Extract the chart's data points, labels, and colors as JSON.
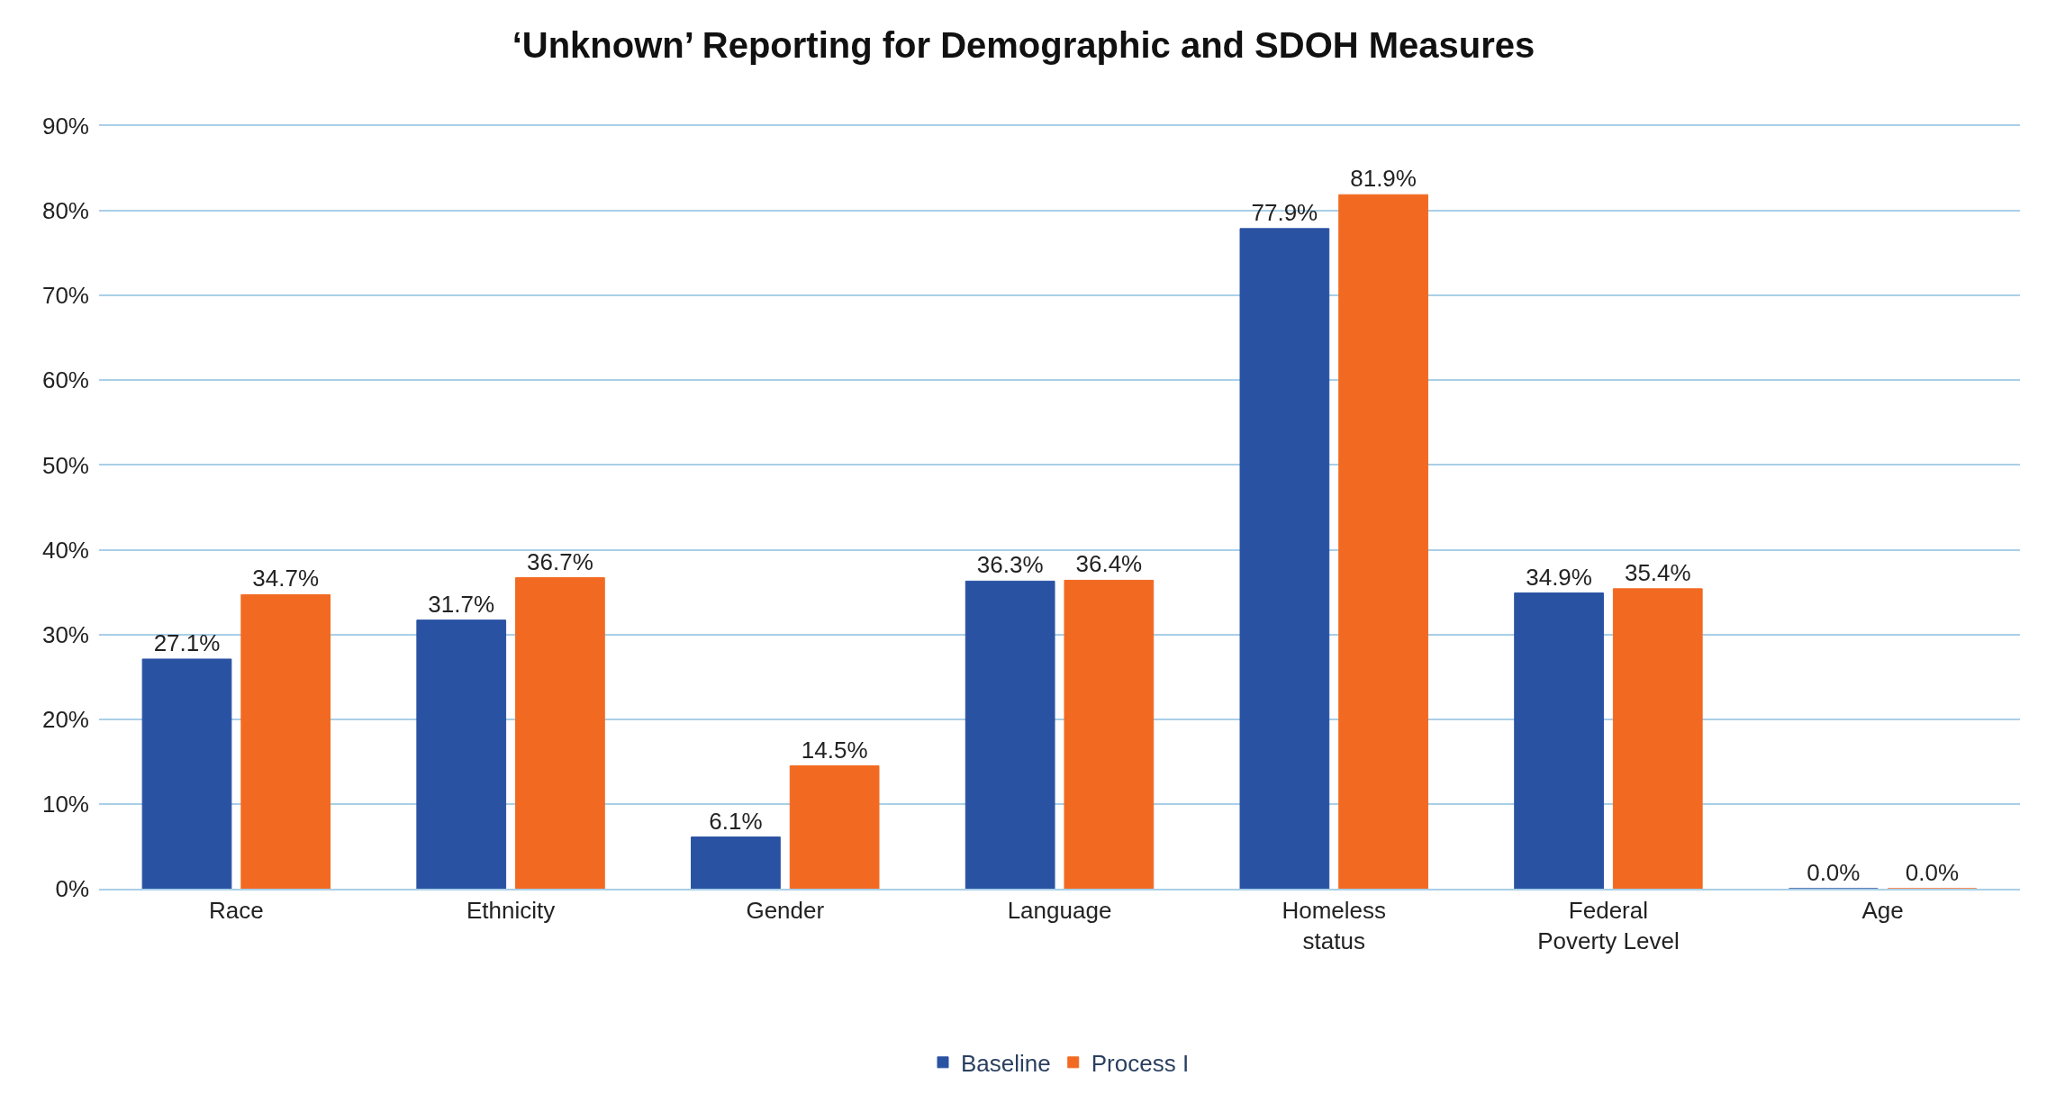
{
  "chart_data": {
    "type": "bar",
    "title": "‘Unknown’ Reporting for Demographic and SDOH Measures",
    "categories": [
      "Race",
      "Ethnicity",
      "Gender",
      "Language",
      "Homeless status",
      "Federal Poverty Level",
      "Age"
    ],
    "series": [
      {
        "name": "Baseline",
        "color": "#2a52a3",
        "values": [
          27.1,
          31.7,
          6.1,
          36.3,
          77.9,
          34.9,
          0.0
        ],
        "value_labels": [
          "27.1%",
          "31.7%",
          "6.1%",
          "36.3%",
          "77.9%",
          "34.9%",
          "0.0%"
        ]
      },
      {
        "name": "Process I",
        "color": "#f26a22",
        "values": [
          34.7,
          36.7,
          14.5,
          36.4,
          81.9,
          35.4,
          0.0
        ],
        "value_labels": [
          "34.7%",
          "36.7%",
          "14.5%",
          "36.4%",
          "81.9%",
          "35.4%",
          "0.0%"
        ]
      }
    ],
    "ylim": [
      0,
      90
    ],
    "yticks": [
      {
        "value": 0,
        "label": "0%"
      },
      {
        "value": 10,
        "label": "10%"
      },
      {
        "value": 20,
        "label": "20%"
      },
      {
        "value": 30,
        "label": "30%"
      },
      {
        "value": 40,
        "label": "40%"
      },
      {
        "value": 50,
        "label": "50%"
      },
      {
        "value": 60,
        "label": "60%"
      },
      {
        "value": 70,
        "label": "70%"
      },
      {
        "value": 80,
        "label": "80%"
      },
      {
        "value": 90,
        "label": "90%"
      }
    ],
    "grid": "y",
    "legend": "bottom"
  }
}
